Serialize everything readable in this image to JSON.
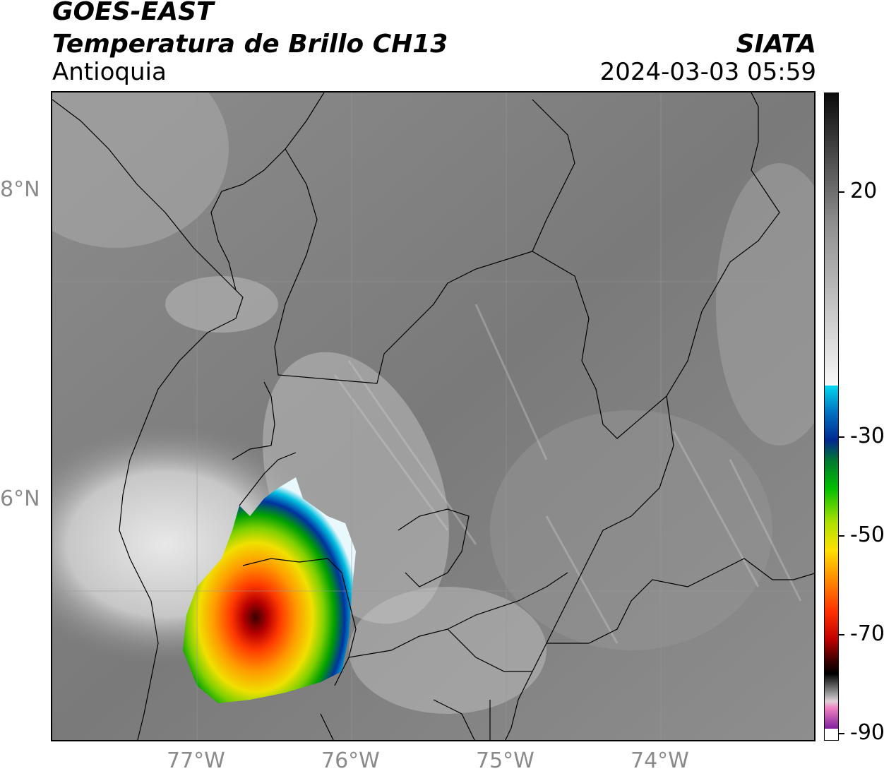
{
  "header": {
    "satellite": "GOES-EAST",
    "product": "Temperatura de Brillo CH13",
    "region": "Antioquia",
    "agency": "SIATA",
    "datetime": "2024-03-03 05:59"
  },
  "map": {
    "lat_labels": [
      "8°N",
      "6°N"
    ],
    "lon_labels": [
      "77°W",
      "76°W",
      "75°W",
      "74°W"
    ],
    "background": "grayscale infrared brightness temperature",
    "storm_colors": [
      "#00bfe0",
      "#0033a0",
      "#00a000",
      "#7fd000",
      "#f0e000",
      "#ff9a00",
      "#ff3a00",
      "#b80000",
      "#3a0000"
    ]
  },
  "colorbar": {
    "labels": [
      "20",
      "-30",
      "-50",
      "-70",
      "-90"
    ],
    "unit_hidden": true
  }
}
